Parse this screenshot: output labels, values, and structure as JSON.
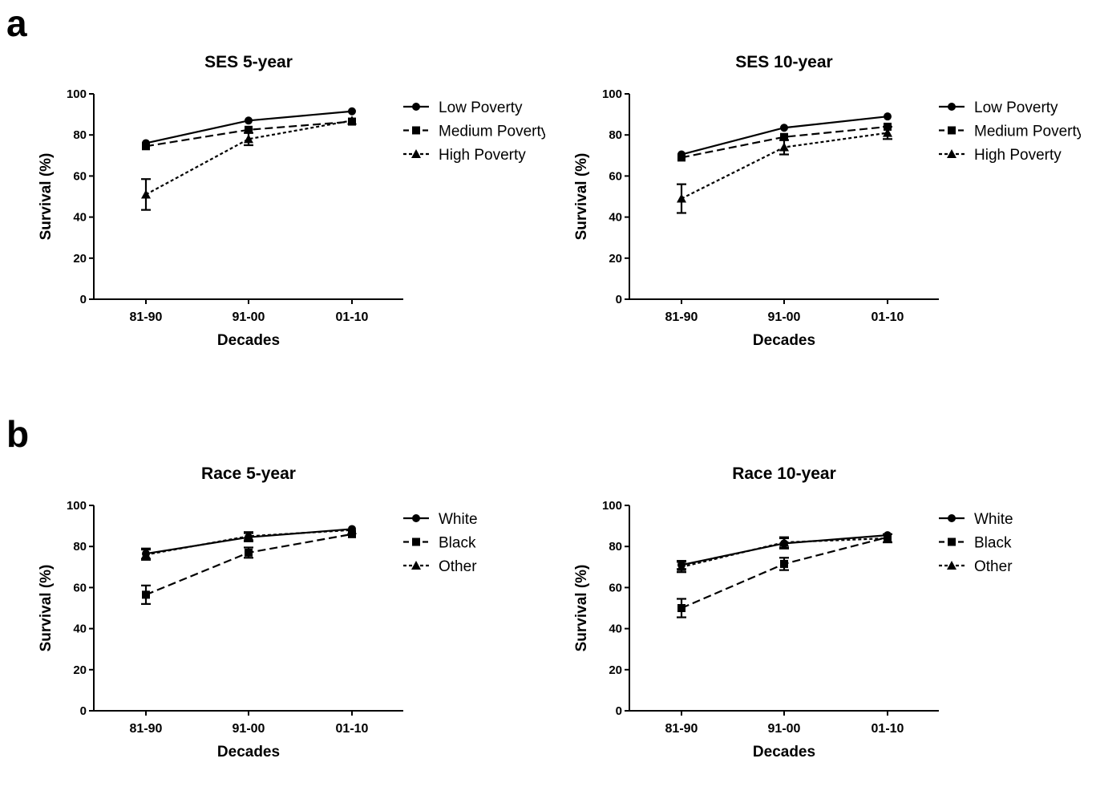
{
  "panel_labels": [
    "a",
    "b"
  ],
  "chart_data": [
    {
      "type": "line",
      "title": "SES 5-year",
      "xlabel": "Decades",
      "ylabel": "Survival (%)",
      "categories": [
        "81-90",
        "91-00",
        "01-10"
      ],
      "ylim": [
        0,
        100
      ],
      "yticks": [
        0,
        20,
        40,
        60,
        80,
        100
      ],
      "grid": false,
      "legend": "right",
      "series": [
        {
          "name": "Low Poverty",
          "marker": "circle",
          "dash": "solid",
          "values": [
            76,
            87,
            91.5
          ],
          "err": [
            0.8,
            0.8,
            0.6
          ]
        },
        {
          "name": "Medium Poverty",
          "marker": "square",
          "dash": "dashed",
          "values": [
            74.5,
            82.5,
            86.5
          ],
          "err": [
            1.0,
            1.2,
            1.0
          ]
        },
        {
          "name": "High Poverty",
          "marker": "triangle",
          "dash": "dotted",
          "values": [
            51,
            78,
            87
          ],
          "err": [
            7.5,
            3.0,
            1.0
          ]
        }
      ]
    },
    {
      "type": "line",
      "title": "SES 10-year",
      "xlabel": "Decades",
      "ylabel": "Survival (%)",
      "categories": [
        "81-90",
        "91-00",
        "01-10"
      ],
      "ylim": [
        0,
        100
      ],
      "yticks": [
        0,
        20,
        40,
        60,
        80,
        100
      ],
      "grid": false,
      "legend": "right",
      "series": [
        {
          "name": "Low Poverty",
          "marker": "circle",
          "dash": "solid",
          "values": [
            70.5,
            83.5,
            89
          ],
          "err": [
            0.8,
            0.8,
            0.6
          ]
        },
        {
          "name": "Medium Poverty",
          "marker": "square",
          "dash": "dashed",
          "values": [
            69,
            79,
            84
          ],
          "err": [
            1.0,
            1.2,
            1.2
          ]
        },
        {
          "name": "High Poverty",
          "marker": "triangle",
          "dash": "dotted",
          "values": [
            49,
            74,
            81
          ],
          "err": [
            7.0,
            3.5,
            3.0
          ]
        }
      ]
    },
    {
      "type": "line",
      "title": "Race 5-year",
      "xlabel": "Decades",
      "ylabel": "Survival (%)",
      "categories": [
        "81-90",
        "91-00",
        "01-10"
      ],
      "ylim": [
        0,
        100
      ],
      "yticks": [
        0,
        20,
        40,
        60,
        80,
        100
      ],
      "grid": false,
      "legend": "right",
      "series": [
        {
          "name": "White",
          "marker": "circle",
          "dash": "solid",
          "values": [
            76.5,
            84.5,
            88.5
          ],
          "err": [
            2.5,
            2.0,
            1.0
          ]
        },
        {
          "name": "Black",
          "marker": "square",
          "dash": "dashed",
          "values": [
            56.5,
            77,
            86
          ],
          "err": [
            4.5,
            2.5,
            1.0
          ]
        },
        {
          "name": "Other",
          "marker": "triangle",
          "dash": "dotted",
          "values": [
            76,
            85,
            88
          ],
          "err": [
            2.5,
            2.0,
            1.0
          ]
        }
      ]
    },
    {
      "type": "line",
      "title": "Race 10-year",
      "xlabel": "Decades",
      "ylabel": "Survival (%)",
      "categories": [
        "81-90",
        "91-00",
        "01-10"
      ],
      "ylim": [
        0,
        100
      ],
      "yticks": [
        0,
        20,
        40,
        60,
        80,
        100
      ],
      "grid": false,
      "legend": "right",
      "series": [
        {
          "name": "White",
          "marker": "circle",
          "dash": "solid",
          "values": [
            71,
            81.5,
            85.5
          ],
          "err": [
            2.0,
            2.5,
            1.0
          ]
        },
        {
          "name": "Black",
          "marker": "square",
          "dash": "dashed",
          "values": [
            50,
            71.5,
            84.5
          ],
          "err": [
            4.5,
            3.0,
            1.5
          ]
        },
        {
          "name": "Other",
          "marker": "triangle",
          "dash": "dotted",
          "values": [
            70,
            82,
            84
          ],
          "err": [
            2.5,
            2.5,
            2.0
          ]
        }
      ]
    }
  ]
}
